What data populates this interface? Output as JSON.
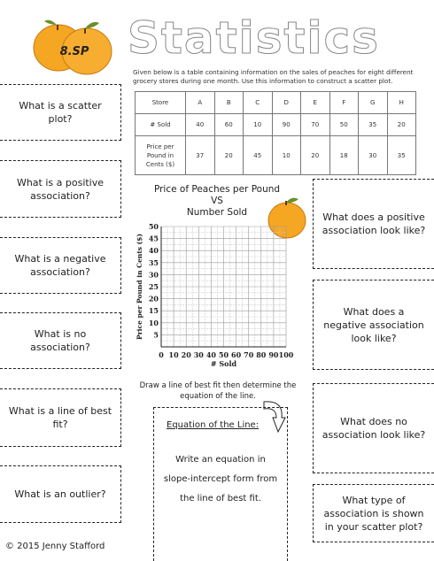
{
  "header": {
    "logo_text": "8.SP",
    "title": "Statistics",
    "intro": "Given below is a table containing information on the sales of peaches for eight different grocery stores during one month.  Use this information to construct a scatter plot."
  },
  "table": {
    "row_headers": [
      "Store",
      "# Sold",
      "Price per Pound in Cents ($)"
    ],
    "stores": [
      "A",
      "B",
      "C",
      "D",
      "E",
      "F",
      "G",
      "H"
    ],
    "sold": [
      "40",
      "60",
      "10",
      "90",
      "70",
      "50",
      "35",
      "20"
    ],
    "price": [
      "37",
      "20",
      "45",
      "10",
      "20",
      "18",
      "30",
      "35"
    ]
  },
  "left_questions": [
    "What is a scatter plot?",
    "What is a positive association?",
    "What is a negative association?",
    "What is no association?",
    "What is a line of best fit?",
    "What is an outlier?"
  ],
  "right_questions": [
    "What does a positive association look like?",
    "What does a negative association look like?",
    "What does no association look like?",
    "What type of association is shown in your scatter plot?"
  ],
  "chart_data": {
    "type": "scatter",
    "title": "Price of Peaches per Pound VS Number Sold",
    "title_lines": [
      "Price of Peaches per Pound",
      "VS",
      "Number Sold"
    ],
    "xlabel": "# Sold",
    "ylabel": "Price per Pound in Cents ($)",
    "xlim": [
      0,
      100
    ],
    "ylim": [
      0,
      50
    ],
    "x_ticks": [
      0,
      10,
      20,
      30,
      40,
      50,
      60,
      70,
      80,
      90,
      100
    ],
    "y_ticks": [
      5,
      10,
      15,
      20,
      25,
      30,
      35,
      40,
      45,
      50
    ],
    "grid": true,
    "series": []
  },
  "line_of_best_fit": {
    "instruction": "Draw a line of best fit then determine the equation of the line.",
    "heading": "Equation of the Line:",
    "body_lines": [
      "Write an equation in",
      "slope-intercept form from",
      "the line of best fit."
    ]
  },
  "footer": {
    "copyright": "© 2015 Jenny Stafford"
  },
  "colors": {
    "peach": "#f5a623",
    "peach_dark": "#e08a10",
    "leaf": "#6a8f2a",
    "grid": "#bbbbbb"
  }
}
